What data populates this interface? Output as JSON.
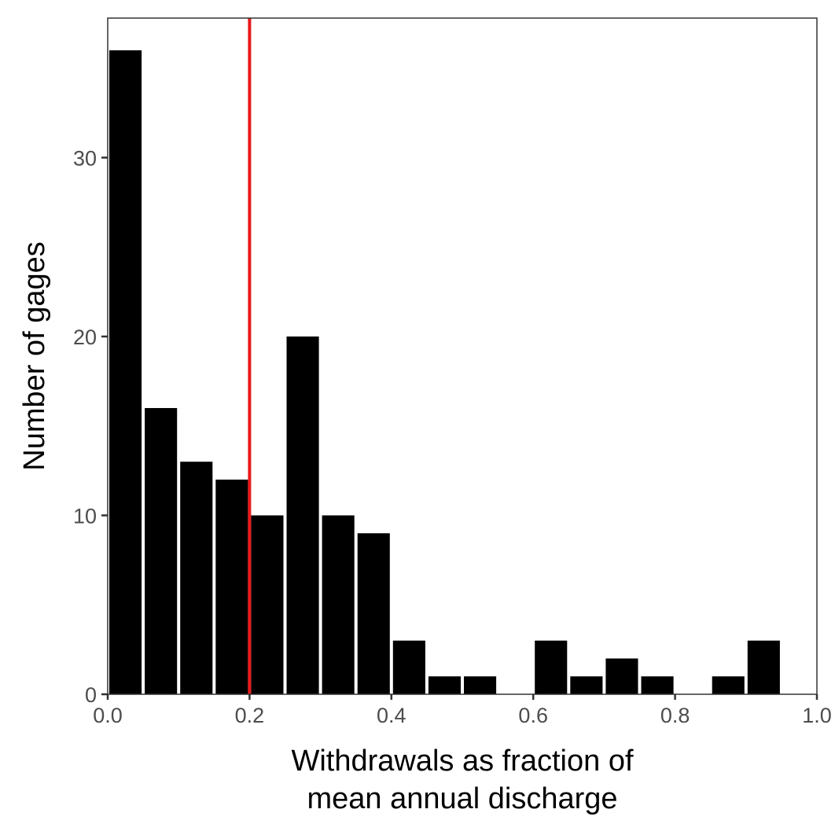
{
  "chart_data": {
    "type": "bar",
    "subtype": "histogram",
    "bins": [
      {
        "x0": 0.0,
        "x1": 0.05,
        "count": 36
      },
      {
        "x0": 0.05,
        "x1": 0.1,
        "count": 16
      },
      {
        "x0": 0.1,
        "x1": 0.15,
        "count": 13
      },
      {
        "x0": 0.15,
        "x1": 0.2,
        "count": 12
      },
      {
        "x0": 0.2,
        "x1": 0.25,
        "count": 10
      },
      {
        "x0": 0.25,
        "x1": 0.3,
        "count": 20
      },
      {
        "x0": 0.3,
        "x1": 0.35,
        "count": 10
      },
      {
        "x0": 0.35,
        "x1": 0.4,
        "count": 9
      },
      {
        "x0": 0.4,
        "x1": 0.45,
        "count": 3
      },
      {
        "x0": 0.45,
        "x1": 0.5,
        "count": 1
      },
      {
        "x0": 0.5,
        "x1": 0.55,
        "count": 1
      },
      {
        "x0": 0.55,
        "x1": 0.6,
        "count": 0
      },
      {
        "x0": 0.6,
        "x1": 0.65,
        "count": 3
      },
      {
        "x0": 0.65,
        "x1": 0.7,
        "count": 1
      },
      {
        "x0": 0.7,
        "x1": 0.75,
        "count": 2
      },
      {
        "x0": 0.75,
        "x1": 0.8,
        "count": 1
      },
      {
        "x0": 0.8,
        "x1": 0.85,
        "count": 0
      },
      {
        "x0": 0.85,
        "x1": 0.9,
        "count": 1
      },
      {
        "x0": 0.9,
        "x1": 0.95,
        "count": 3
      }
    ],
    "reference_line": {
      "x": 0.2,
      "color": "#e8191c"
    },
    "xlabel": [
      "Withdrawals as fraction of",
      "mean annual discharge"
    ],
    "ylabel": "Number of gages",
    "xlim": [
      0.0,
      1.0
    ],
    "ylim": [
      0,
      37.8
    ],
    "xticks": [
      0.0,
      0.2,
      0.4,
      0.6,
      0.8,
      1.0
    ],
    "xtick_labels": [
      "0.0",
      "0.2",
      "0.4",
      "0.6",
      "0.8",
      "1.0"
    ],
    "yticks": [
      0,
      10,
      20,
      30
    ],
    "ytick_labels": [
      "0",
      "10",
      "20",
      "30"
    ],
    "bar_color": "#000000",
    "grid": false,
    "legend": "none"
  }
}
